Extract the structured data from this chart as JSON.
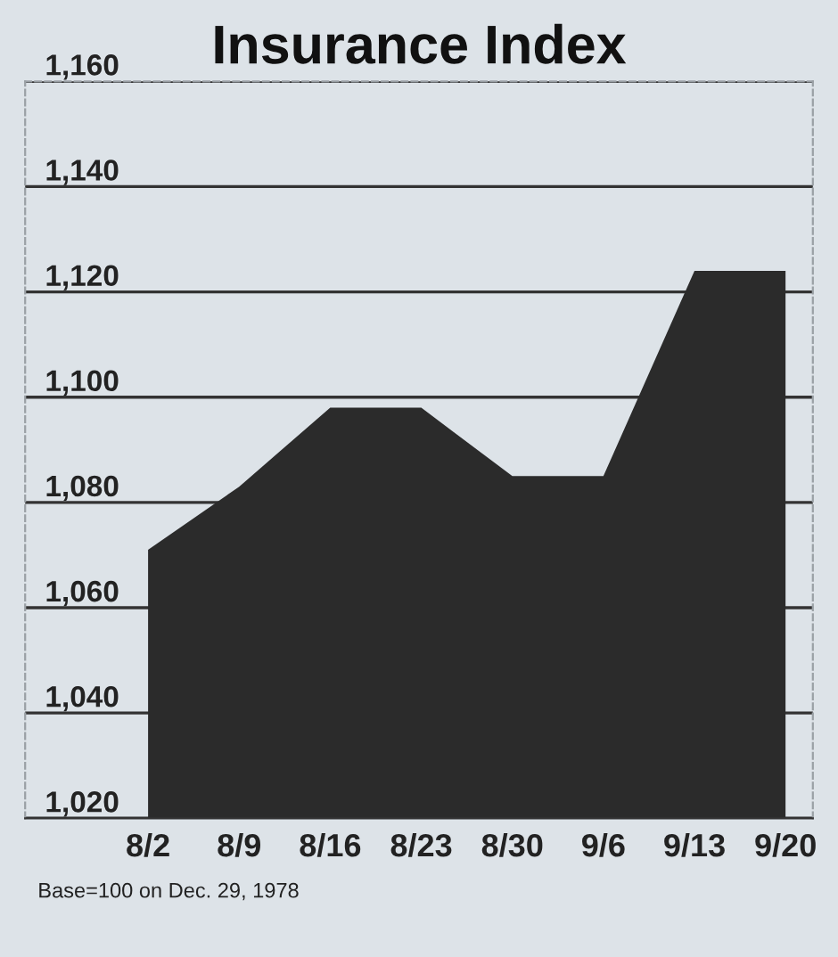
{
  "chart_data": {
    "type": "area",
    "title": "Insurance Index",
    "categories": [
      "8/2",
      "8/9",
      "8/16",
      "8/23",
      "8/30",
      "9/6",
      "9/13",
      "9/20"
    ],
    "values": [
      1071,
      1083,
      1098,
      1098,
      1085,
      1085,
      1124,
      1124
    ],
    "color": "#2b2b2b",
    "ylim": [
      1020,
      1160
    ],
    "yticks": [
      {
        "value": 1020,
        "label": "1,020"
      },
      {
        "value": 1040,
        "label": "1,040"
      },
      {
        "value": 1060,
        "label": "1,060"
      },
      {
        "value": 1080,
        "label": "1,080"
      },
      {
        "value": 1100,
        "label": "1,100"
      },
      {
        "value": 1120,
        "label": "1,120"
      },
      {
        "value": 1140,
        "label": "1,140"
      },
      {
        "value": 1160,
        "label": "1,160"
      }
    ],
    "grid": "y",
    "annotations": [
      "Base=100 on Dec. 29, 1978"
    ]
  }
}
